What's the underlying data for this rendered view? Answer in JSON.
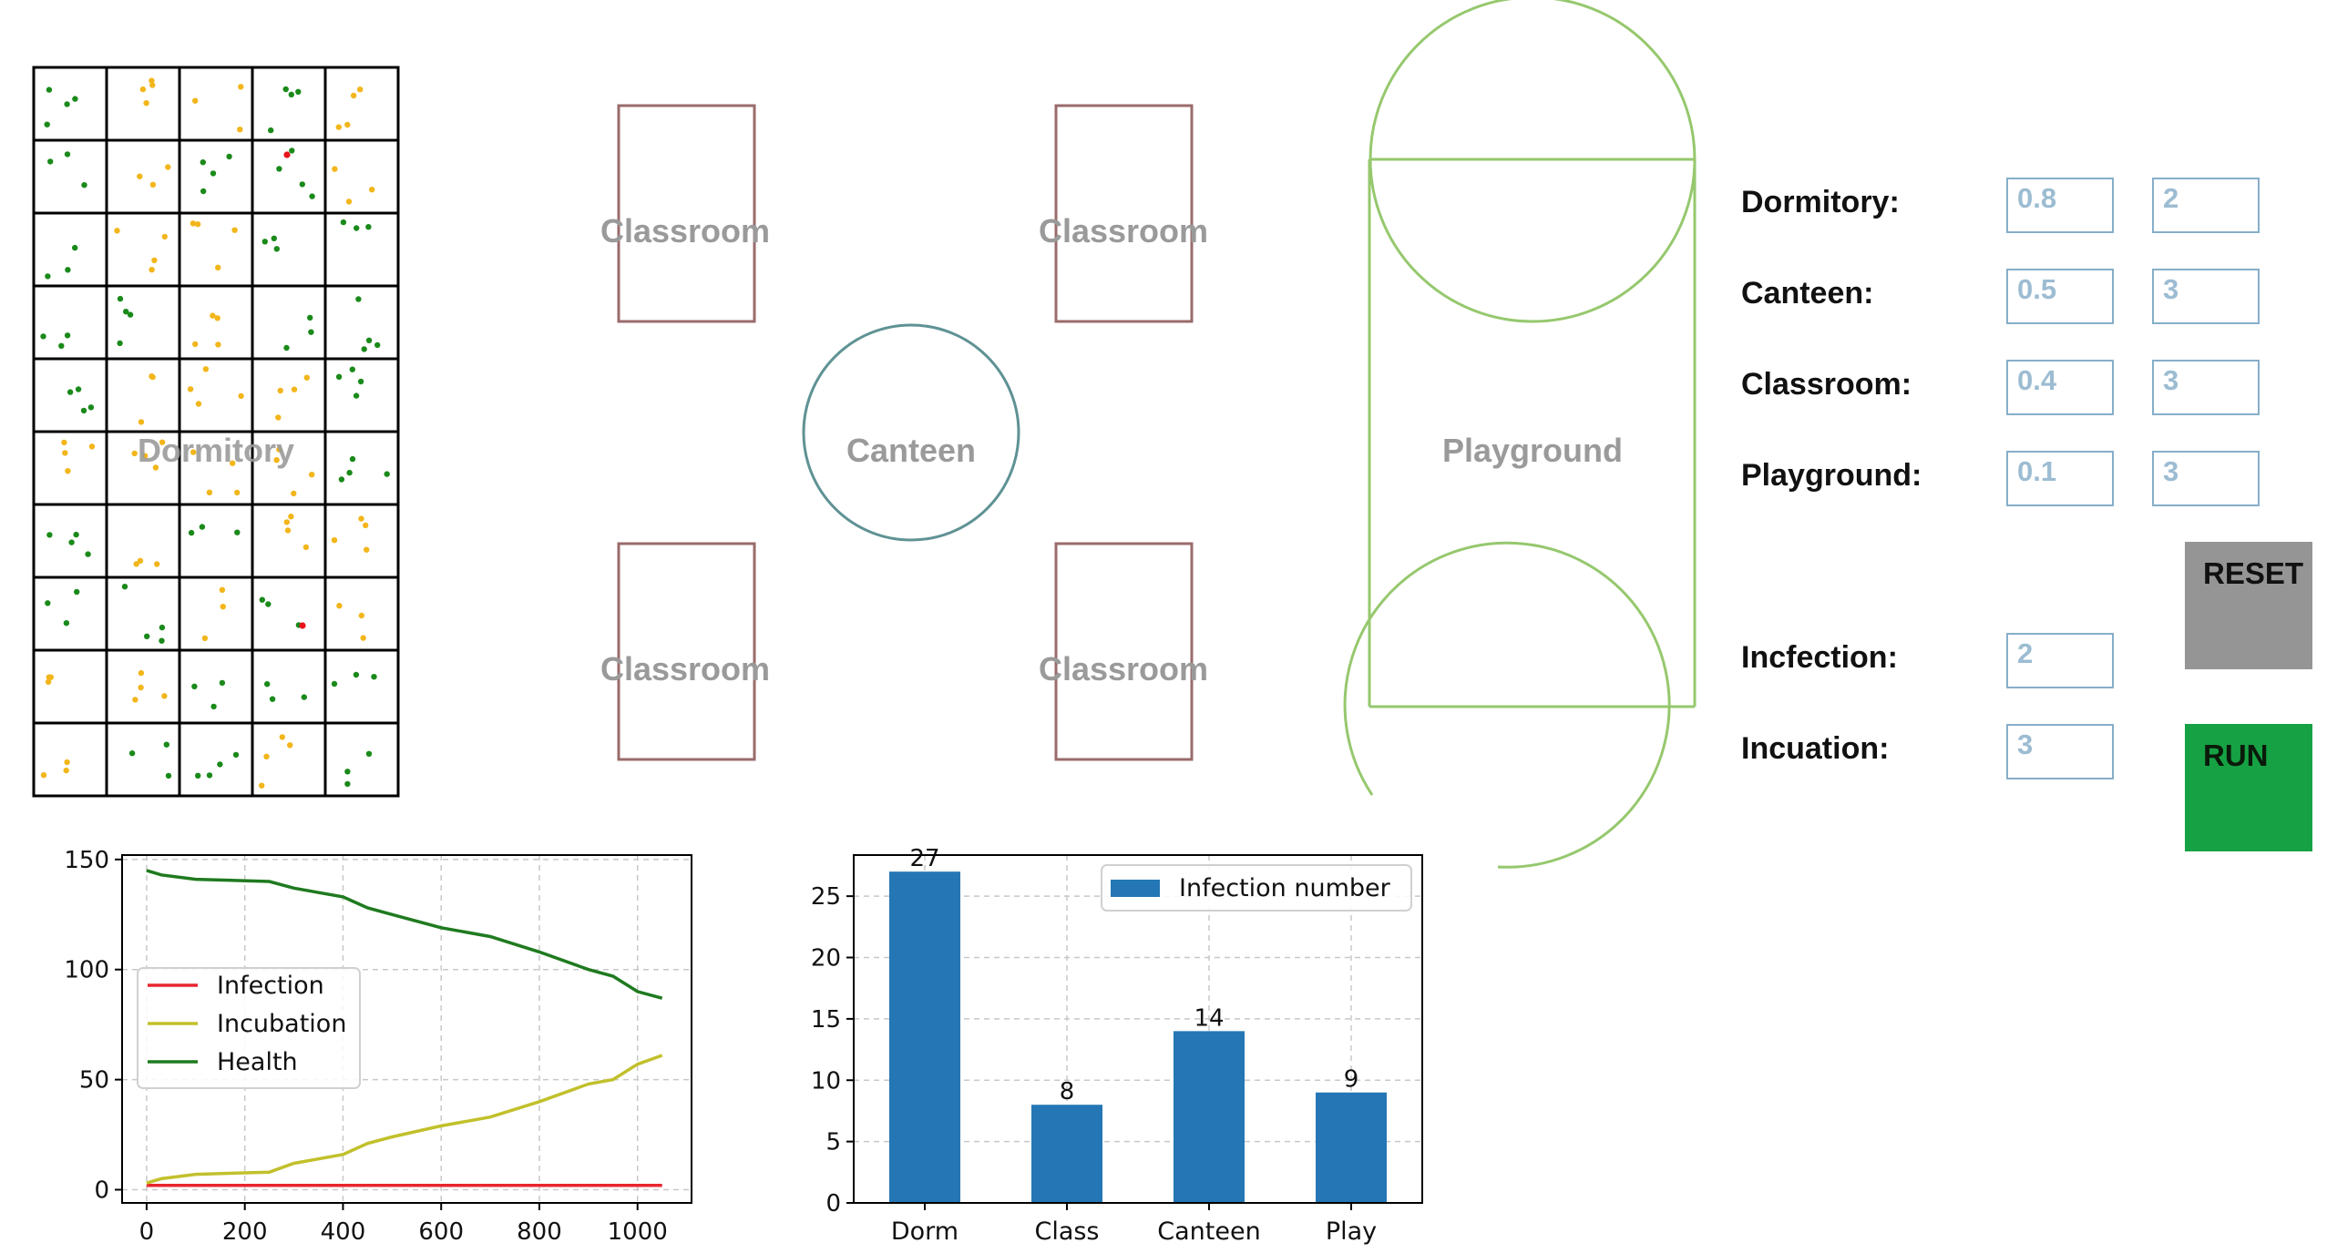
{
  "zones": {
    "dormitory_label": "Dormitory",
    "classroom_labels": [
      "Classroom",
      "Classroom",
      "Classroom",
      "Classroom"
    ],
    "canteen_label": "Canteen",
    "playground_label": "Playground"
  },
  "colors": {
    "healthy": "#1a8a1a",
    "incubation": "#f2b61b",
    "infected": "#e8141a",
    "classroom": "#9a6b6b",
    "canteen": "#5f9294",
    "playground": "#96c86e",
    "zone_text": "#9a9a9a",
    "bar": "#2477b4",
    "line_infection": "#e8262e",
    "line_incubation": "#c2c02c",
    "line_health": "#1f7a1f"
  },
  "controls": {
    "rows": [
      {
        "label": "Dormitory:",
        "prob": "0.8",
        "time": "2"
      },
      {
        "label": "Canteen:",
        "prob": "0.5",
        "time": "3"
      },
      {
        "label": "Classroom:",
        "prob": "0.4",
        "time": "3"
      },
      {
        "label": "Playground:",
        "prob": "0.1",
        "time": "3"
      }
    ],
    "infection_label": "Incfection:",
    "infection_value": "2",
    "incubation_label": "Incuation:",
    "incubation_value": "3",
    "reset_label": "RESET",
    "run_label": "RUN"
  },
  "chart_data": [
    {
      "type": "line",
      "xlim": [
        -50,
        1110
      ],
      "ylim": [
        -6,
        152
      ],
      "xticks": [
        0,
        200,
        400,
        600,
        800,
        1000
      ],
      "yticks": [
        0,
        50,
        100,
        150
      ],
      "grid": true,
      "legend_position": "center-left",
      "series": [
        {
          "name": "Infection",
          "color": "#e8262e",
          "x": [
            0,
            100,
            200,
            300,
            400,
            500,
            600,
            700,
            800,
            900,
            1000,
            1050
          ],
          "y": [
            2,
            2,
            2,
            2,
            2,
            2,
            2,
            2,
            2,
            2,
            2,
            2
          ]
        },
        {
          "name": "Incubation",
          "color": "#c2c02c",
          "x": [
            0,
            30,
            100,
            250,
            300,
            400,
            450,
            500,
            600,
            700,
            800,
            900,
            950,
            1000,
            1050
          ],
          "y": [
            3,
            5,
            7,
            8,
            12,
            16,
            21,
            24,
            29,
            33,
            40,
            48,
            50,
            57,
            61
          ]
        },
        {
          "name": "Health",
          "color": "#1f7a1f",
          "x": [
            0,
            30,
            100,
            250,
            300,
            400,
            450,
            500,
            600,
            700,
            800,
            900,
            950,
            1000,
            1050
          ],
          "y": [
            145,
            143,
            141,
            140,
            137,
            133,
            128,
            125,
            119,
            115,
            108,
            100,
            97,
            90,
            87
          ]
        }
      ]
    },
    {
      "type": "bar",
      "categories": [
        "Dorm",
        "Class",
        "Canteen",
        "Play"
      ],
      "series": [
        {
          "name": "Infection number",
          "values": [
            27,
            8,
            14,
            9
          ]
        }
      ],
      "data_labels": [
        "27",
        "8",
        "14",
        "9"
      ],
      "ylim": [
        0,
        28.35
      ],
      "yticks": [
        0,
        5,
        10,
        15,
        20,
        25
      ],
      "grid": true,
      "legend_position": "top-right"
    }
  ]
}
